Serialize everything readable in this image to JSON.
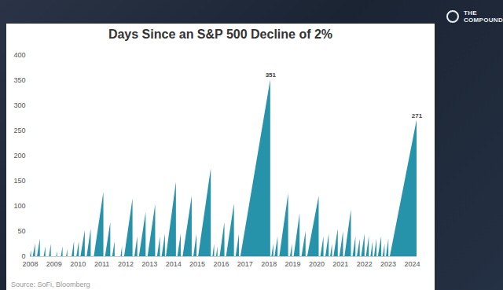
{
  "chart_data": {
    "type": "area",
    "title": "Days Since an S&P 500 Decline of 2%",
    "source": "Source: SoFi, Bloomberg",
    "logo": "THE COMPOUND",
    "color": "#2793ab",
    "x": [
      2008.0,
      2008.05,
      2008.05,
      2008.12,
      2008.22,
      2008.22,
      2008.3,
      2008.42,
      2008.42,
      2008.58,
      2008.65,
      2008.65,
      2008.8,
      2008.88,
      2008.88,
      2009.1,
      2009.14,
      2009.14,
      2009.3,
      2009.37,
      2009.37,
      2009.52,
      2009.57,
      2009.57,
      2009.75,
      2009.85,
      2009.85,
      2009.95,
      2010.05,
      2010.05,
      2010.12,
      2010.3,
      2010.3,
      2010.38,
      2010.55,
      2010.55,
      2010.68,
      2011.08,
      2011.08,
      2011.15,
      2011.37,
      2011.37,
      2011.45,
      2011.55,
      2011.55,
      2011.8,
      2011.86,
      2011.86,
      2011.95,
      2012.3,
      2012.3,
      2012.38,
      2012.5,
      2012.5,
      2012.57,
      2012.85,
      2012.85,
      2012.93,
      2013.25,
      2013.25,
      2013.33,
      2013.45,
      2013.45,
      2013.52,
      2013.66,
      2013.66,
      2013.7,
      2014.12,
      2014.12,
      2014.18,
      2014.32,
      2014.32,
      2014.4,
      2014.78,
      2014.78,
      2014.85,
      2014.98,
      2014.98,
      2015.05,
      2015.58,
      2015.58,
      2015.65,
      2015.72,
      2015.72,
      2015.8,
      2015.86,
      2015.86,
      2015.95,
      2016.15,
      2016.15,
      2016.22,
      2016.55,
      2016.55,
      2016.62,
      2016.76,
      2016.76,
      2016.82,
      2018.07,
      2018.07,
      2018.12,
      2018.2,
      2018.2,
      2018.25,
      2018.38,
      2018.38,
      2018.45,
      2018.82,
      2018.82,
      2018.9,
      2018.98,
      2018.98,
      2019.05,
      2019.3,
      2019.3,
      2019.38,
      2019.55,
      2019.55,
      2019.62,
      2020.1,
      2020.1,
      2020.17,
      2020.3,
      2020.3,
      2020.38,
      2020.52,
      2020.52,
      2020.58,
      2020.66,
      2020.66,
      2020.72,
      2020.9,
      2020.9,
      2020.97,
      2021.12,
      2021.12,
      2021.18,
      2021.45,
      2021.45,
      2021.52,
      2021.64,
      2021.64,
      2021.7,
      2021.82,
      2021.82,
      2021.88,
      2022.02,
      2022.02,
      2022.08,
      2022.2,
      2022.2,
      2022.27,
      2022.36,
      2022.36,
      2022.42,
      2022.52,
      2022.52,
      2022.58,
      2022.72,
      2022.72,
      2022.78,
      2022.86,
      2022.86,
      2022.92,
      2023.02,
      2023.02,
      2023.08,
      2024.2
    ],
    "values": [
      0,
      12,
      0,
      0,
      25,
      0,
      0,
      35,
      0,
      0,
      20,
      0,
      0,
      25,
      0,
      0,
      10,
      0,
      0,
      20,
      0,
      0,
      15,
      0,
      0,
      30,
      0,
      0,
      30,
      0,
      0,
      52,
      0,
      0,
      55,
      0,
      0,
      128,
      0,
      0,
      68,
      0,
      0,
      30,
      0,
      0,
      20,
      0,
      0,
      115,
      0,
      0,
      40,
      0,
      0,
      88,
      0,
      0,
      103,
      0,
      0,
      40,
      0,
      0,
      45,
      0,
      0,
      148,
      0,
      0,
      45,
      0,
      0,
      120,
      0,
      0,
      45,
      0,
      0,
      175,
      0,
      0,
      25,
      0,
      0,
      20,
      0,
      0,
      68,
      0,
      0,
      105,
      0,
      0,
      45,
      0,
      0,
      351,
      0,
      0,
      25,
      0,
      0,
      40,
      0,
      0,
      125,
      0,
      0,
      25,
      0,
      0,
      85,
      0,
      0,
      50,
      0,
      0,
      120,
      0,
      0,
      40,
      0,
      0,
      45,
      0,
      0,
      25,
      0,
      0,
      55,
      0,
      0,
      50,
      0,
      0,
      93,
      0,
      0,
      40,
      0,
      0,
      35,
      0,
      0,
      45,
      0,
      0,
      40,
      0,
      0,
      30,
      0,
      0,
      35,
      0,
      0,
      40,
      0,
      0,
      25,
      0,
      0,
      35,
      0,
      0,
      271
    ],
    "xlim": [
      2008,
      2024.2
    ],
    "xticks": [
      2008,
      2009,
      2010,
      2011,
      2012,
      2013,
      2014,
      2015,
      2016,
      2017,
      2018,
      2019,
      2020,
      2021,
      2022,
      2023,
      2024
    ],
    "ylim": [
      0,
      400
    ],
    "yticks": [
      0,
      50,
      100,
      150,
      200,
      250,
      300,
      350,
      400
    ],
    "grid": false,
    "annotations": [
      {
        "x": 2018.07,
        "y": 351,
        "text": "351"
      },
      {
        "x": 2024.2,
        "y": 271,
        "text": "271"
      }
    ]
  }
}
